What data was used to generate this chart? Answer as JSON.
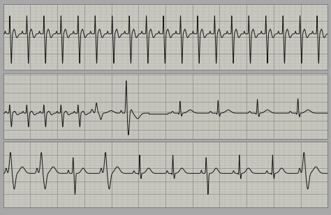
{
  "fig_width": 4.74,
  "fig_height": 3.08,
  "dpi": 100,
  "bg_color": "#a8a8a8",
  "strip_bg": "#c8c8c0",
  "grid_major_color": "#909090",
  "grid_minor_color": "#b0b0a8",
  "ecg_color": "#111111",
  "ecg_linewidth": 0.7
}
